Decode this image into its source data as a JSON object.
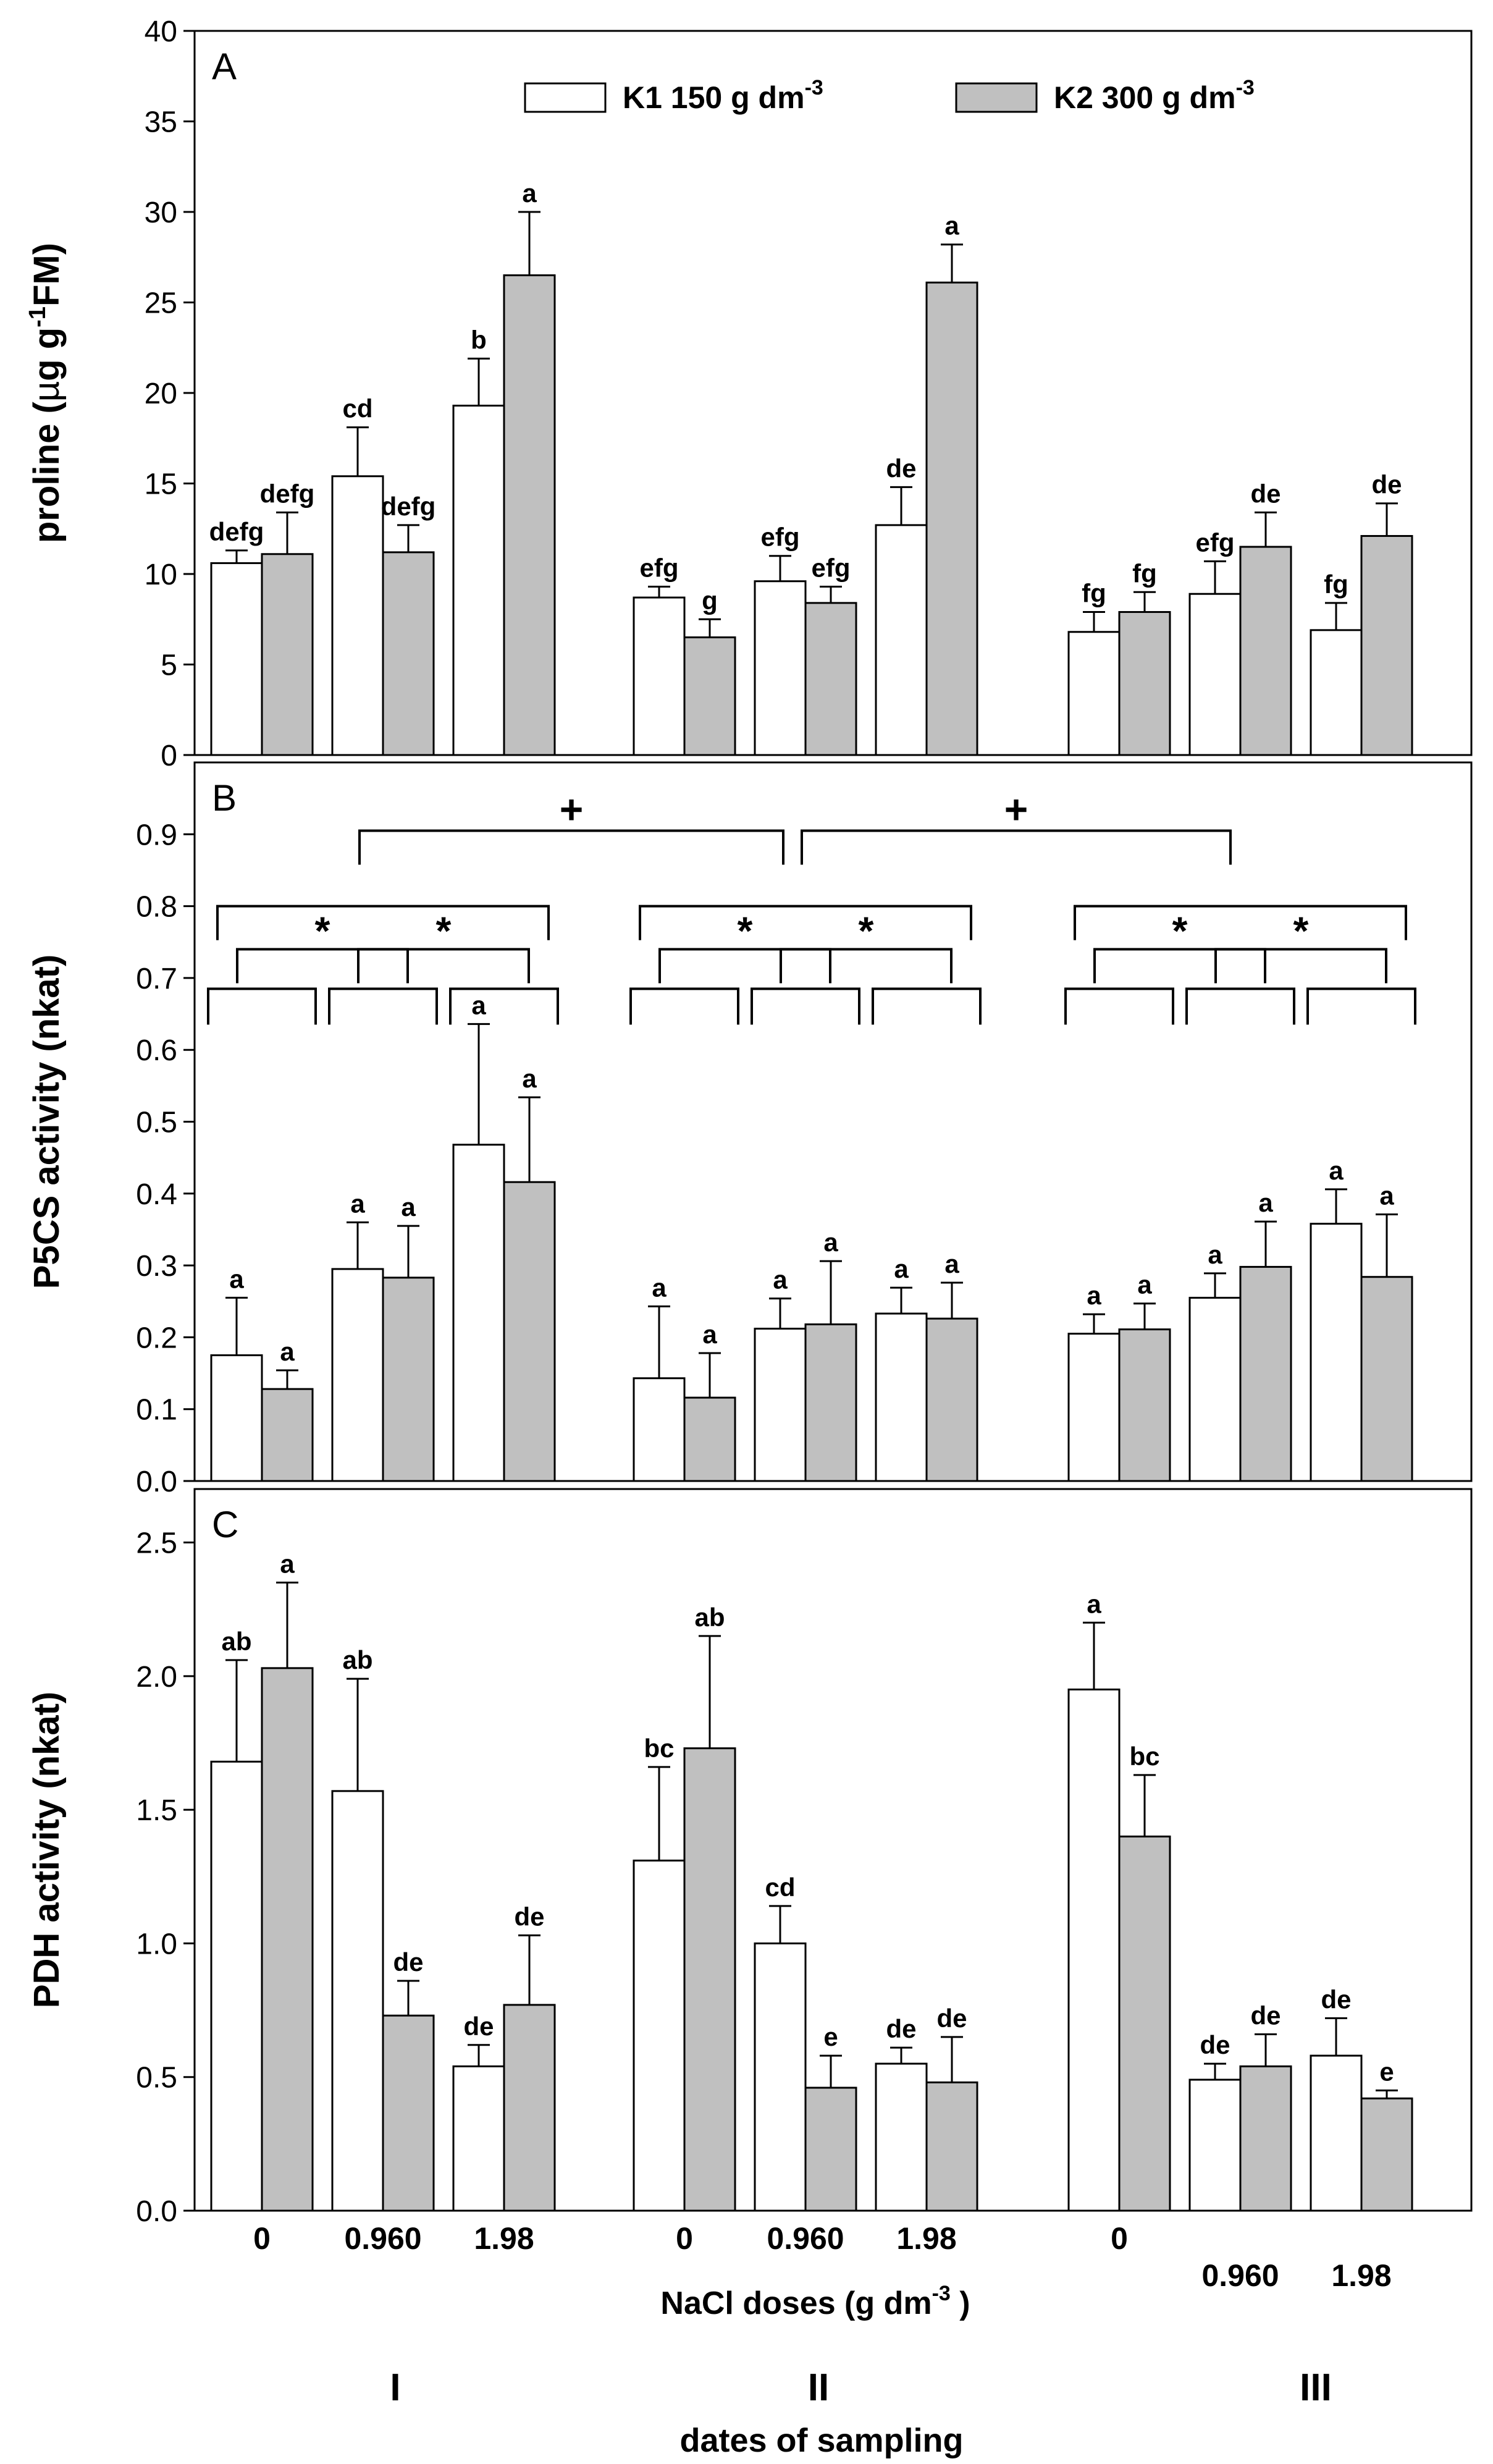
{
  "legend": {
    "items": [
      {
        "label": "K1 150 g dm",
        "sup": "-3",
        "fill": "#ffffff"
      },
      {
        "label": "K2  300 g dm",
        "sup": "-3",
        "fill": "#c0c0c0"
      }
    ]
  },
  "x_axis": {
    "dose_ticks": [
      "0",
      "0.960",
      "1.98"
    ],
    "label": "NaCl doses  (g dm",
    "label_sup": "-3",
    "label_end": " )",
    "date_labels": [
      "I",
      "II",
      "III"
    ],
    "date_title": "dates of sampling"
  },
  "colors": {
    "k1": "#ffffff",
    "k2": "#c0c0c0",
    "stroke": "#000000"
  },
  "chart_data": [
    {
      "type": "bar",
      "panel": "A",
      "ylabel": "proline (µg g-1FM)",
      "ylabel_parts": [
        "proline (",
        "µ",
        "g g",
        "-1",
        "FM)"
      ],
      "ylim": [
        0,
        40
      ],
      "yticks": [
        "0",
        "5",
        "10",
        "15",
        "20",
        "25",
        "30",
        "35",
        "40"
      ],
      "series": [
        {
          "name": "K1 150 g dm-3",
          "values": [
            10.6,
            15.4,
            19.3,
            8.7,
            9.6,
            12.7,
            6.8,
            8.9,
            6.9
          ],
          "errors": [
            0.7,
            2.7,
            2.6,
            0.6,
            1.4,
            2.1,
            1.1,
            1.8,
            1.5
          ],
          "labels": [
            "defg",
            "cd",
            "b",
            "efg",
            "efg",
            "de",
            "fg",
            "efg",
            "fg"
          ]
        },
        {
          "name": "K2  300 g dm-3",
          "values": [
            11.1,
            11.2,
            26.5,
            6.5,
            8.4,
            26.1,
            7.9,
            11.5,
            12.1
          ],
          "errors": [
            2.3,
            1.5,
            3.5,
            1.0,
            0.9,
            2.1,
            1.1,
            1.9,
            1.8
          ],
          "labels": [
            "defg",
            "defg",
            "a",
            "g",
            "efg",
            "a",
            "fg",
            "de",
            "de"
          ]
        }
      ]
    },
    {
      "type": "bar",
      "panel": "B",
      "ylabel": "P5CS activity (nkat)",
      "ylim": [
        0,
        1.0
      ],
      "yticks": [
        "0.0",
        "0.1",
        "0.2",
        "0.3",
        "0.4",
        "0.5",
        "0.6",
        "0.7",
        "0.8",
        "0.9"
      ],
      "series": [
        {
          "name": "K1 150 g dm-3",
          "values": [
            0.175,
            0.295,
            0.468,
            0.143,
            0.212,
            0.233,
            0.205,
            0.255,
            0.358
          ],
          "errors": [
            0.08,
            0.065,
            0.168,
            0.1,
            0.042,
            0.036,
            0.027,
            0.034,
            0.048
          ],
          "labels": [
            "a",
            "a",
            "a",
            "a",
            "a",
            "a",
            "a",
            "a",
            "a"
          ]
        },
        {
          "name": "K2  300 g dm-3",
          "values": [
            0.128,
            0.283,
            0.416,
            0.116,
            0.218,
            0.226,
            0.211,
            0.298,
            0.284
          ],
          "errors": [
            0.026,
            0.072,
            0.118,
            0.062,
            0.088,
            0.05,
            0.036,
            0.063,
            0.087
          ],
          "labels": [
            "a",
            "a",
            "a",
            "a",
            "a",
            "a",
            "a",
            "a",
            "a"
          ]
        }
      ],
      "brackets": [
        {
          "from": [
            0,
            0
          ],
          "to": [
            0,
            2
          ],
          "y": 0.795,
          "symbol": "*"
        },
        {
          "from": [
            1,
            0
          ],
          "to": [
            1,
            2
          ],
          "y": 0.795,
          "symbol": "*"
        },
        {
          "from": [
            2,
            0
          ],
          "to": [
            2,
            2
          ],
          "y": 0.795,
          "symbol": "*"
        },
        {
          "from": [
            0,
            0
          ],
          "to": [
            0,
            1
          ],
          "y": 0.74,
          "symbol": "*"
        },
        {
          "from": [
            0,
            1
          ],
          "to": [
            0,
            2
          ],
          "y": 0.74,
          "symbol": "*"
        },
        {
          "from": [
            1,
            0
          ],
          "to": [
            1,
            1
          ],
          "y": 0.74,
          "symbol": "*"
        },
        {
          "from": [
            1,
            1
          ],
          "to": [
            1,
            2
          ],
          "y": 0.74,
          "symbol": "*"
        },
        {
          "from": [
            2,
            0
          ],
          "to": [
            2,
            1
          ],
          "y": 0.74,
          "symbol": "*"
        },
        {
          "from": [
            2,
            1
          ],
          "to": [
            2,
            2
          ],
          "y": 0.74,
          "symbol": "*"
        },
        {
          "from": [
            0,
            1
          ],
          "to": [
            1,
            1
          ],
          "y": 0.905,
          "symbol": "+"
        },
        {
          "from": [
            1,
            1
          ],
          "to": [
            2,
            1
          ],
          "y": 0.905,
          "symbol": "+"
        }
      ]
    },
    {
      "type": "bar",
      "panel": "C",
      "ylabel": "PDH activity (nkat)",
      "ylim": [
        0,
        2.7
      ],
      "yticks": [
        "0.0",
        "0.5",
        "1.0",
        "1.5",
        "2.0",
        "2.5"
      ],
      "series": [
        {
          "name": "K1 150 g dm-3",
          "values": [
            1.68,
            1.57,
            0.54,
            1.31,
            1.0,
            0.55,
            1.95,
            0.49,
            0.58
          ],
          "errors": [
            0.38,
            0.42,
            0.08,
            0.35,
            0.14,
            0.06,
            0.25,
            0.06,
            0.14
          ],
          "labels": [
            "ab",
            "ab",
            "de",
            "bc",
            "cd",
            "de",
            "a",
            "de",
            "de"
          ]
        },
        {
          "name": "K2  300 g dm-3",
          "values": [
            2.03,
            0.73,
            0.77,
            1.73,
            0.46,
            0.48,
            1.4,
            0.54,
            0.42
          ],
          "errors": [
            0.32,
            0.13,
            0.26,
            0.42,
            0.12,
            0.17,
            0.23,
            0.12,
            0.03
          ],
          "labels": [
            "a",
            "de",
            "de",
            "ab",
            "e",
            "de",
            "bc",
            "de",
            "e"
          ]
        }
      ]
    }
  ]
}
